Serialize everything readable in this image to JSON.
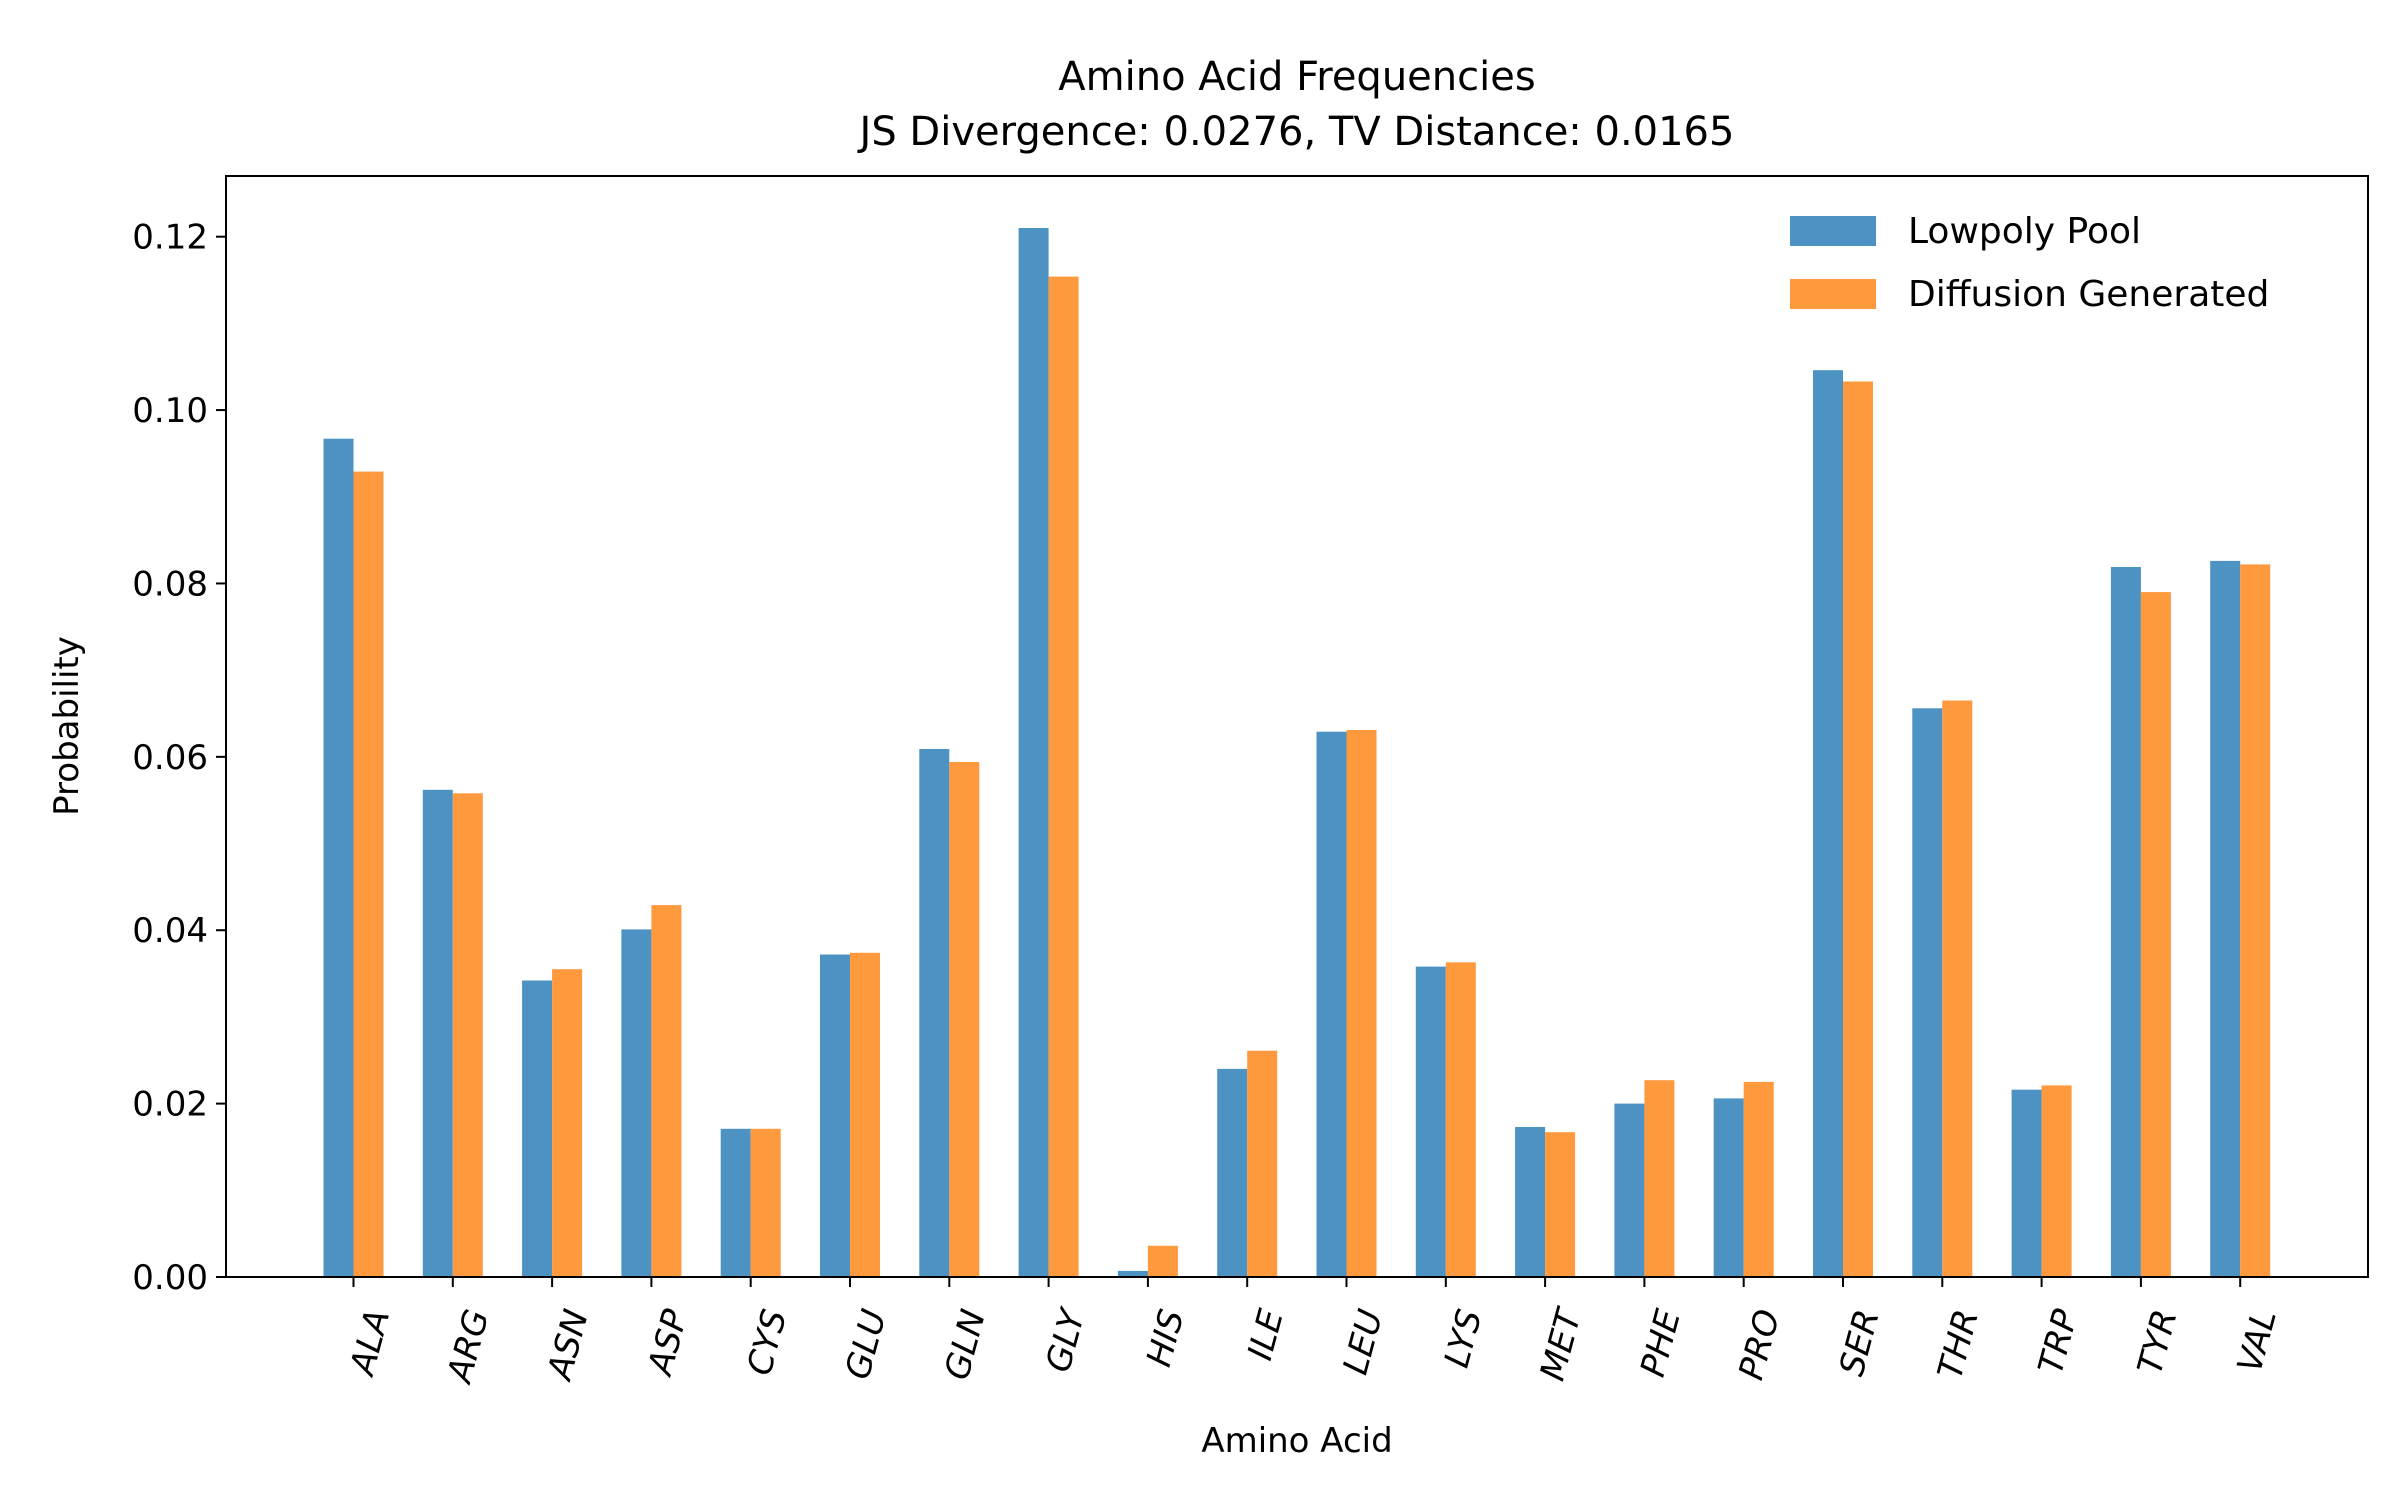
{
  "chart_data": {
    "type": "bar",
    "title": "Amino Acid Frequencies",
    "subtitle": "JS Divergence: 0.0276, TV Distance: 0.0165",
    "xlabel": "Amino Acid",
    "ylabel": "Probability",
    "ylim": [
      0,
      0.127
    ],
    "yticks": [
      "0.00",
      "0.02",
      "0.04",
      "0.06",
      "0.08",
      "0.10",
      "0.12"
    ],
    "grid": false,
    "legend_position": "top-right",
    "categories": [
      "ALA",
      "ARG",
      "ASN",
      "ASP",
      "CYS",
      "GLU",
      "GLN",
      "GLY",
      "HIS",
      "ILE",
      "LEU",
      "LYS",
      "MET",
      "PHE",
      "PRO",
      "SER",
      "THR",
      "TRP",
      "TYR",
      "VAL"
    ],
    "series": [
      {
        "name": "Lowpoly Pool",
        "color": "#4c92c3",
        "values": [
          0.0967,
          0.0562,
          0.0342,
          0.0401,
          0.0171,
          0.0372,
          0.0609,
          0.121,
          0.0007,
          0.024,
          0.0629,
          0.0358,
          0.0173,
          0.02,
          0.0206,
          0.1046,
          0.0656,
          0.0216,
          0.0819,
          0.0826
        ]
      },
      {
        "name": "Diffusion Generated",
        "color": "#ff993e",
        "values": [
          0.0929,
          0.0558,
          0.0355,
          0.0429,
          0.0171,
          0.0374,
          0.0594,
          0.1154,
          0.0036,
          0.0261,
          0.0631,
          0.0363,
          0.0167,
          0.0227,
          0.0225,
          0.1033,
          0.0665,
          0.0221,
          0.079,
          0.0822
        ]
      }
    ]
  }
}
